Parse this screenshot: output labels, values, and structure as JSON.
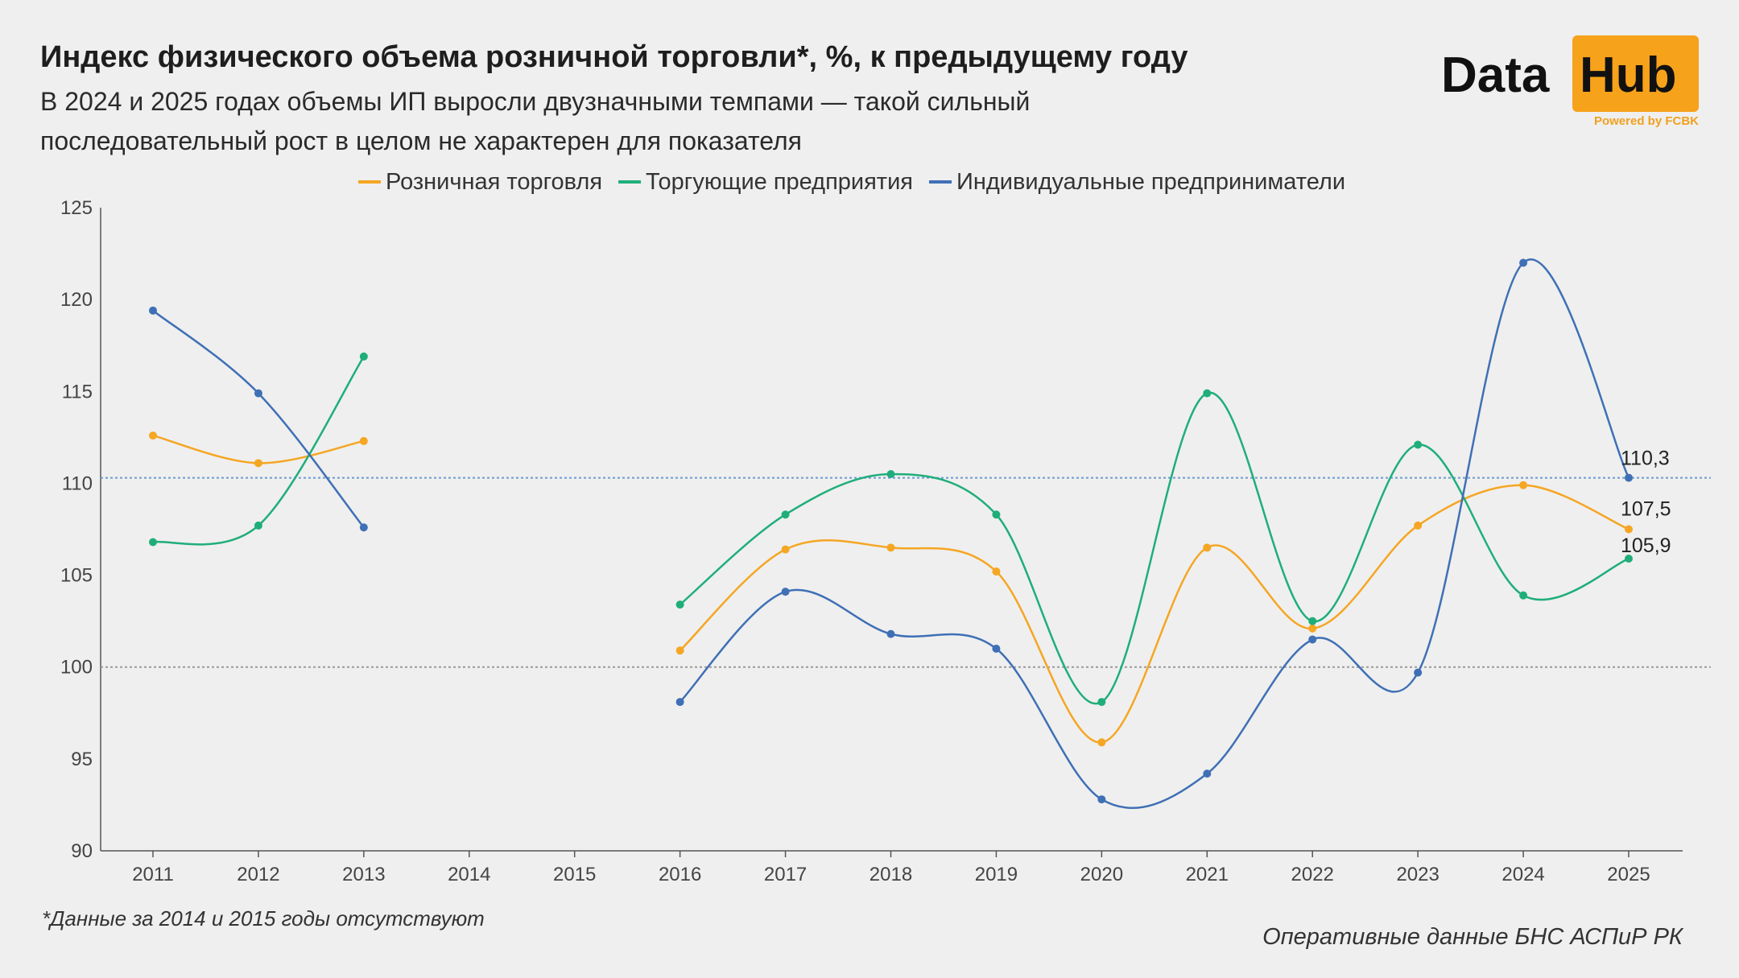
{
  "header": {
    "title": "Индекс физического объема розничной торговли*, %, к предыдущему году",
    "subtitle": "В 2024 и 2025 годах объемы ИП выросли двузначными темпами — такой сильный последовательный рост в целом не характерен для показателя"
  },
  "logo": {
    "text1": "Data",
    "text2": "Hub",
    "powered": "Powered by FCBK",
    "accent": "#f7a21b"
  },
  "footnote": "*Данные за 2014 и 2015 годы отсутствуют",
  "source": "Оперативные данные БНС АСПиР РК",
  "chart_data": {
    "type": "line",
    "title": "Индекс физического объема розничной торговли*, %, к предыдущему году",
    "x": [
      "2011",
      "2012",
      "2013",
      "2014",
      "2015",
      "2016",
      "2017",
      "2018",
      "2019",
      "2020",
      "2021",
      "2022",
      "2023",
      "2024",
      "2025"
    ],
    "ylim": [
      90,
      125
    ],
    "yticks": [
      90,
      95,
      100,
      105,
      110,
      115,
      120,
      125
    ],
    "grid": false,
    "legend_position": "top",
    "smooth": true,
    "reference_lines": [
      {
        "value": 110.3,
        "color": "#6a9bd1",
        "style": "dotted"
      },
      {
        "value": 100,
        "color": "#9a9a9a",
        "style": "dotted"
      }
    ],
    "series": [
      {
        "name": "Розничная торговля",
        "color": "#f5a623",
        "values": [
          112.6,
          111.1,
          112.3,
          null,
          null,
          100.9,
          106.4,
          106.5,
          105.2,
          95.9,
          106.5,
          102.1,
          107.7,
          109.9,
          107.5
        ],
        "end_label": "107,5"
      },
      {
        "name": "Торгующие предприятия",
        "color": "#1fae7a",
        "values": [
          106.8,
          107.7,
          116.9,
          null,
          null,
          103.4,
          108.3,
          110.5,
          108.3,
          98.1,
          114.9,
          102.5,
          112.1,
          103.9,
          105.9
        ],
        "end_label": "105,9"
      },
      {
        "name": "Индивидуальные предприниматели",
        "color": "#3f70b5",
        "values": [
          119.4,
          114.9,
          107.6,
          null,
          null,
          98.1,
          104.1,
          101.8,
          101.0,
          92.8,
          94.2,
          101.5,
          99.7,
          122.0,
          110.3
        ],
        "end_label": "110,3"
      }
    ]
  }
}
